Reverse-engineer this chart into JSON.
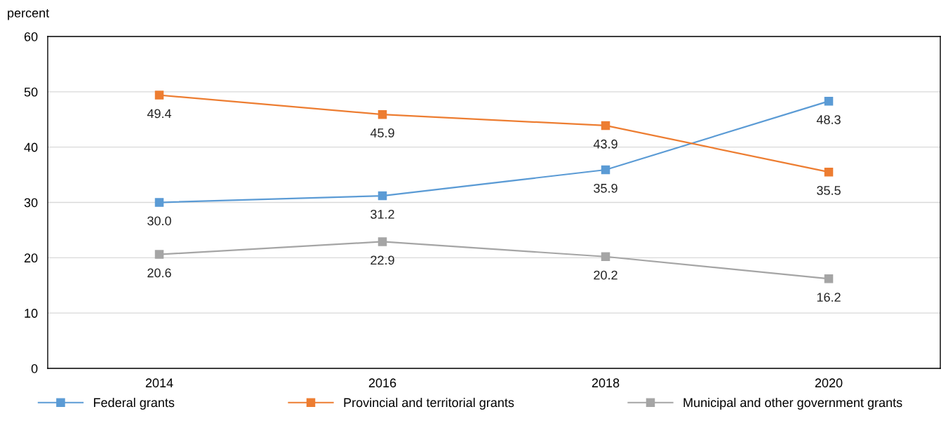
{
  "chart_data": {
    "type": "line",
    "ylabel": "percent",
    "categories": [
      "2014",
      "2016",
      "2018",
      "2020"
    ],
    "series": [
      {
        "name": "Federal grants",
        "color": "#5b9bd5",
        "values": [
          30.0,
          31.2,
          35.9,
          48.3
        ],
        "value_labels": [
          "30.0",
          "31.2",
          "35.9",
          "48.3"
        ]
      },
      {
        "name": "Provincial and territorial grants",
        "color": "#ed7d31",
        "values": [
          49.4,
          45.9,
          43.9,
          35.5
        ],
        "value_labels": [
          "49.4",
          "45.9",
          "43.9",
          "35.5"
        ]
      },
      {
        "name": "Municipal and other government grants",
        "color": "#a5a5a5",
        "values": [
          20.6,
          22.9,
          20.2,
          16.2
        ],
        "value_labels": [
          "20.6",
          "22.9",
          "20.2",
          "16.2"
        ]
      }
    ],
    "ylim": [
      0,
      60
    ],
    "yticks": [
      0,
      10,
      20,
      30,
      40,
      50,
      60
    ],
    "grid": "y",
    "legend": "bottom",
    "marker": "square",
    "line_style": "solid"
  }
}
